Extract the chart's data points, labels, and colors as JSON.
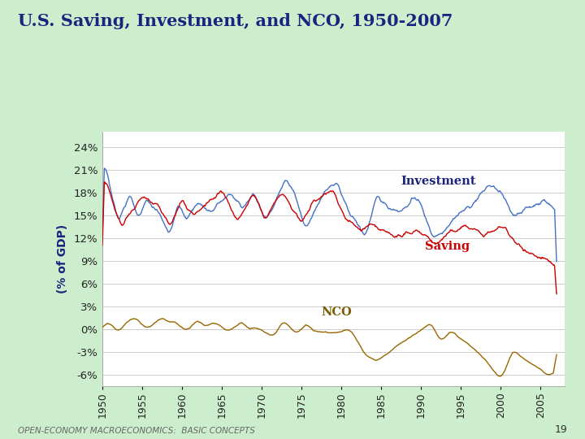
{
  "title": "U.S. Saving, Investment, and NCO, 1950-2007",
  "ylabel": "(% of GDP)",
  "background_color": "#cceecc",
  "plot_bg_color": "#ffffff",
  "title_color": "#1a237e",
  "ylabel_color": "#1a237e",
  "investment_color": "#4472c4",
  "saving_color": "#cc0000",
  "nco_color": "#996600",
  "investment_label": "Investment",
  "saving_label": "Saving",
  "nco_label": "NCO",
  "label_investment_color": "#1a237e",
  "label_saving_color": "#cc0000",
  "label_nco_color": "#7a5c00",
  "yticks": [
    -6,
    -3,
    0,
    3,
    6,
    9,
    12,
    15,
    18,
    21,
    24
  ],
  "ytick_labels": [
    "-6%",
    "-3%",
    "0%",
    "3%",
    "6%",
    "9%",
    "12%",
    "15%",
    "18%",
    "21%",
    "24%"
  ],
  "xticks": [
    1950,
    1955,
    1960,
    1965,
    1970,
    1975,
    1980,
    1985,
    1990,
    1995,
    2000,
    2005
  ],
  "footer_text": "OPEN-ECONOMY MACROECONOMICS:  BASIC CONCEPTS",
  "footer_number": "19",
  "ylim": [
    -7.5,
    26
  ],
  "xlim": [
    1950,
    2008
  ]
}
